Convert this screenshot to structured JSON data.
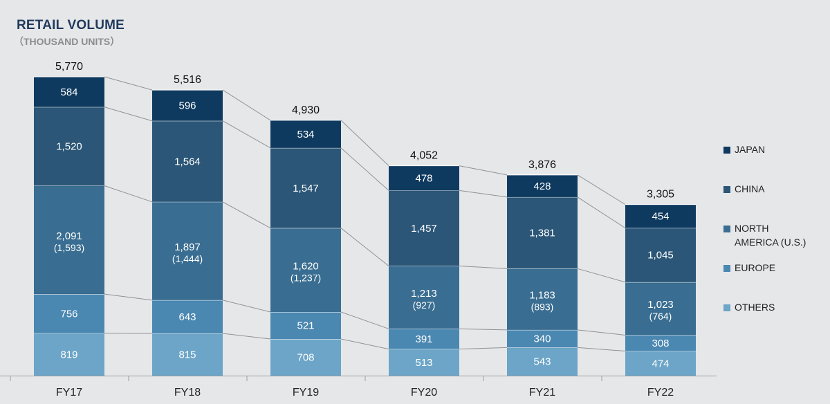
{
  "header": {
    "title": "RETAIL VOLUME",
    "subtitle": "（THOUSAND UNITS）"
  },
  "colors": {
    "background": "#e6e7e9",
    "JAPAN": "#0f3a5f",
    "CHINA": "#2b5677",
    "NORTH AMERICA (U.S.)": "#396d91",
    "EUROPE": "#4a87b1",
    "OTHERS": "#6ca5c7",
    "connector": "#8f9296"
  },
  "legend": {
    "items": [
      {
        "label": "JAPAN",
        "color": "#0f3a5f"
      },
      {
        "label": "CHINA",
        "color": "#2b5677"
      },
      {
        "label": "NORTH\nAMERICA (U.S.)",
        "color": "#396d91"
      },
      {
        "label": "EUROPE",
        "color": "#4a87b1"
      },
      {
        "label": "OTHERS",
        "color": "#6ca5c7"
      }
    ]
  },
  "chart_data": {
    "type": "bar",
    "stacked": true,
    "title": "RETAIL VOLUME",
    "subtitle": "（THOUSAND UNITS）",
    "categories": [
      "FY17",
      "FY18",
      "FY19",
      "FY20",
      "FY21",
      "FY22"
    ],
    "totals": [
      "5,770",
      "5,516",
      "4,930",
      "4,052",
      "3,876",
      "3,305"
    ],
    "series": [
      {
        "name": "OTHERS",
        "values": [
          819,
          815,
          708,
          513,
          543,
          474
        ],
        "labels": [
          "819",
          "815",
          "708",
          "513",
          "543",
          "474"
        ]
      },
      {
        "name": "EUROPE",
        "values": [
          756,
          643,
          521,
          391,
          340,
          308
        ],
        "labels": [
          "756",
          "643",
          "521",
          "391",
          "340",
          "308"
        ]
      },
      {
        "name": "NORTH AMERICA (U.S.)",
        "values": [
          2091,
          1897,
          1620,
          1213,
          1183,
          1023
        ],
        "labels": [
          "2,091",
          "1,897",
          "1,620",
          "1,213",
          "1,183",
          "1,023"
        ],
        "sublabels": [
          "(1,593)",
          "(1,444)",
          "(1,237)",
          "(927)",
          "(893)",
          "(764)"
        ]
      },
      {
        "name": "CHINA",
        "values": [
          1520,
          1564,
          1547,
          1457,
          1381,
          1045
        ],
        "labels": [
          "1,520",
          "1,564",
          "1,547",
          "1,457",
          "1,381",
          "1,045"
        ]
      },
      {
        "name": "JAPAN",
        "values": [
          584,
          596,
          534,
          478,
          428,
          454
        ],
        "labels": [
          "584",
          "596",
          "534",
          "478",
          "428",
          "454"
        ]
      }
    ],
    "ylim": [
      0,
      5770
    ],
    "grid": false,
    "legend_position": "right"
  }
}
